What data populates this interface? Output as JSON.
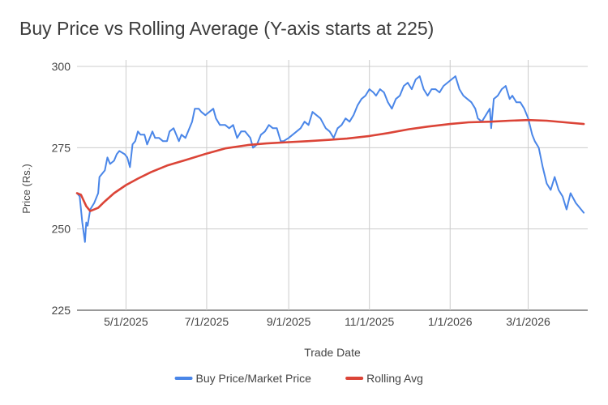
{
  "chart_data": {
    "type": "line",
    "title": "Buy Price vs Rolling Average (Y-axis starts at 225)",
    "xlabel": "Trade Date",
    "ylabel": "Price (Rs.)",
    "xlim": [
      "2025-03-25",
      "2026-04-15"
    ],
    "ylim": [
      225,
      302
    ],
    "yticks": [
      225,
      250,
      275,
      300
    ],
    "xticks": [
      {
        "date": "2025-05-01",
        "label": "5/1/2025"
      },
      {
        "date": "2025-07-01",
        "label": "7/1/2025"
      },
      {
        "date": "2025-09-01",
        "label": "9/1/2025"
      },
      {
        "date": "2025-11-01",
        "label": "11/1/2025"
      },
      {
        "date": "2026-01-01",
        "label": "1/1/2026"
      },
      {
        "date": "2026-03-01",
        "label": "3/1/2026"
      }
    ],
    "grid": true,
    "legend_position": "bottom",
    "series": [
      {
        "name": "Buy Price/Market Price",
        "color": "#4a86e8",
        "points": [
          [
            "2025-03-25",
            261
          ],
          [
            "2025-03-27",
            260
          ],
          [
            "2025-03-29",
            252
          ],
          [
            "2025-03-31",
            246
          ],
          [
            "2025-04-01",
            252
          ],
          [
            "2025-04-02",
            251
          ],
          [
            "2025-04-04",
            256
          ],
          [
            "2025-04-07",
            258
          ],
          [
            "2025-04-10",
            261
          ],
          [
            "2025-04-11",
            266
          ],
          [
            "2025-04-15",
            268
          ],
          [
            "2025-04-17",
            272
          ],
          [
            "2025-04-19",
            270
          ],
          [
            "2025-04-22",
            271
          ],
          [
            "2025-04-24",
            273
          ],
          [
            "2025-04-26",
            274
          ],
          [
            "2025-04-30",
            273
          ],
          [
            "2025-05-02",
            272
          ],
          [
            "2025-05-04",
            269
          ],
          [
            "2025-05-06",
            276
          ],
          [
            "2025-05-08",
            277
          ],
          [
            "2025-05-10",
            280
          ],
          [
            "2025-05-12",
            279
          ],
          [
            "2025-05-15",
            279
          ],
          [
            "2025-05-17",
            276
          ],
          [
            "2025-05-19",
            278
          ],
          [
            "2025-05-21",
            280
          ],
          [
            "2025-05-23",
            278
          ],
          [
            "2025-05-26",
            278
          ],
          [
            "2025-05-29",
            277
          ],
          [
            "2025-06-01",
            277
          ],
          [
            "2025-06-03",
            280
          ],
          [
            "2025-06-06",
            281
          ],
          [
            "2025-06-08",
            279
          ],
          [
            "2025-06-10",
            277
          ],
          [
            "2025-06-12",
            279
          ],
          [
            "2025-06-15",
            278
          ],
          [
            "2025-06-18",
            281
          ],
          [
            "2025-06-20",
            283
          ],
          [
            "2025-06-22",
            287
          ],
          [
            "2025-06-25",
            287
          ],
          [
            "2025-06-27",
            286
          ],
          [
            "2025-06-30",
            285
          ],
          [
            "2025-07-03",
            286
          ],
          [
            "2025-07-06",
            287
          ],
          [
            "2025-07-08",
            284
          ],
          [
            "2025-07-11",
            282
          ],
          [
            "2025-07-15",
            282
          ],
          [
            "2025-07-18",
            281
          ],
          [
            "2025-07-21",
            282
          ],
          [
            "2025-07-24",
            278
          ],
          [
            "2025-07-27",
            280
          ],
          [
            "2025-07-30",
            280
          ],
          [
            "2025-08-03",
            278
          ],
          [
            "2025-08-05",
            275
          ],
          [
            "2025-08-08",
            276
          ],
          [
            "2025-08-11",
            279
          ],
          [
            "2025-08-14",
            280
          ],
          [
            "2025-08-17",
            282
          ],
          [
            "2025-08-20",
            281
          ],
          [
            "2025-08-23",
            281
          ],
          [
            "2025-08-26",
            277
          ],
          [
            "2025-08-28",
            277
          ],
          [
            "2025-09-01",
            278
          ],
          [
            "2025-09-04",
            279
          ],
          [
            "2025-09-07",
            280
          ],
          [
            "2025-09-10",
            281
          ],
          [
            "2025-09-13",
            283
          ],
          [
            "2025-09-16",
            282
          ],
          [
            "2025-09-19",
            286
          ],
          [
            "2025-09-22",
            285
          ],
          [
            "2025-09-25",
            284
          ],
          [
            "2025-09-29",
            281
          ],
          [
            "2025-10-02",
            280
          ],
          [
            "2025-10-05",
            278
          ],
          [
            "2025-10-08",
            281
          ],
          [
            "2025-10-11",
            282
          ],
          [
            "2025-10-14",
            284
          ],
          [
            "2025-10-17",
            283
          ],
          [
            "2025-10-20",
            285
          ],
          [
            "2025-10-23",
            288
          ],
          [
            "2025-10-26",
            290
          ],
          [
            "2025-10-29",
            291
          ],
          [
            "2025-11-01",
            293
          ],
          [
            "2025-11-04",
            292
          ],
          [
            "2025-11-06",
            291
          ],
          [
            "2025-11-09",
            293
          ],
          [
            "2025-11-12",
            292
          ],
          [
            "2025-11-15",
            289
          ],
          [
            "2025-11-18",
            287
          ],
          [
            "2025-11-21",
            290
          ],
          [
            "2025-11-24",
            291
          ],
          [
            "2025-11-27",
            294
          ],
          [
            "2025-11-30",
            295
          ],
          [
            "2025-12-03",
            293
          ],
          [
            "2025-12-06",
            296
          ],
          [
            "2025-12-09",
            297
          ],
          [
            "2025-12-12",
            293
          ],
          [
            "2025-12-15",
            291
          ],
          [
            "2025-12-18",
            293
          ],
          [
            "2025-12-21",
            293
          ],
          [
            "2025-12-24",
            292
          ],
          [
            "2025-12-27",
            294
          ],
          [
            "2025-12-30",
            295
          ],
          [
            "2026-01-02",
            296
          ],
          [
            "2026-01-05",
            297
          ],
          [
            "2026-01-08",
            293
          ],
          [
            "2026-01-11",
            291
          ],
          [
            "2026-01-14",
            290
          ],
          [
            "2026-01-17",
            289
          ],
          [
            "2026-01-20",
            287
          ],
          [
            "2026-01-22",
            284
          ],
          [
            "2026-01-25",
            283
          ],
          [
            "2026-01-28",
            285
          ],
          [
            "2026-01-31",
            287
          ],
          [
            "2026-02-01",
            281
          ],
          [
            "2026-02-03",
            290
          ],
          [
            "2026-02-06",
            291
          ],
          [
            "2026-02-09",
            293
          ],
          [
            "2026-02-12",
            294
          ],
          [
            "2026-02-15",
            290
          ],
          [
            "2026-02-17",
            291
          ],
          [
            "2026-02-20",
            289
          ],
          [
            "2026-02-23",
            289
          ],
          [
            "2026-02-26",
            287
          ],
          [
            "2026-03-01",
            284
          ],
          [
            "2026-03-04",
            279
          ],
          [
            "2026-03-06",
            277
          ],
          [
            "2026-03-09",
            275
          ],
          [
            "2026-03-12",
            269
          ],
          [
            "2026-03-15",
            264
          ],
          [
            "2026-03-18",
            262
          ],
          [
            "2026-03-21",
            266
          ],
          [
            "2026-03-24",
            262
          ],
          [
            "2026-03-27",
            260
          ],
          [
            "2026-03-30",
            256
          ],
          [
            "2026-04-02",
            261
          ],
          [
            "2026-04-06",
            258
          ],
          [
            "2026-04-12",
            255
          ]
        ]
      },
      {
        "name": "Rolling Avg",
        "color": "#db4437",
        "points": [
          [
            "2025-03-25",
            261
          ],
          [
            "2025-03-28",
            260.5
          ],
          [
            "2025-04-01",
            257
          ],
          [
            "2025-04-04",
            255.5
          ],
          [
            "2025-04-10",
            256.5
          ],
          [
            "2025-04-15",
            258.5
          ],
          [
            "2025-04-22",
            261
          ],
          [
            "2025-05-01",
            263.5
          ],
          [
            "2025-05-10",
            265.5
          ],
          [
            "2025-05-20",
            267.5
          ],
          [
            "2025-06-01",
            269.5
          ],
          [
            "2025-06-15",
            271.2
          ],
          [
            "2025-07-01",
            273.2
          ],
          [
            "2025-07-15",
            274.8
          ],
          [
            "2025-08-01",
            275.8
          ],
          [
            "2025-08-15",
            276.3
          ],
          [
            "2025-09-01",
            276.7
          ],
          [
            "2025-09-15",
            277.0
          ],
          [
            "2025-10-01",
            277.4
          ],
          [
            "2025-10-15",
            277.8
          ],
          [
            "2025-11-01",
            278.6
          ],
          [
            "2025-11-15",
            279.5
          ],
          [
            "2025-12-01",
            280.7
          ],
          [
            "2025-12-15",
            281.5
          ],
          [
            "2026-01-01",
            282.3
          ],
          [
            "2026-01-15",
            282.8
          ],
          [
            "2026-02-01",
            283.0
          ],
          [
            "2026-02-15",
            283.3
          ],
          [
            "2026-03-01",
            283.5
          ],
          [
            "2026-03-15",
            283.3
          ],
          [
            "2026-04-01",
            282.7
          ],
          [
            "2026-04-12",
            282.3
          ]
        ]
      }
    ]
  }
}
